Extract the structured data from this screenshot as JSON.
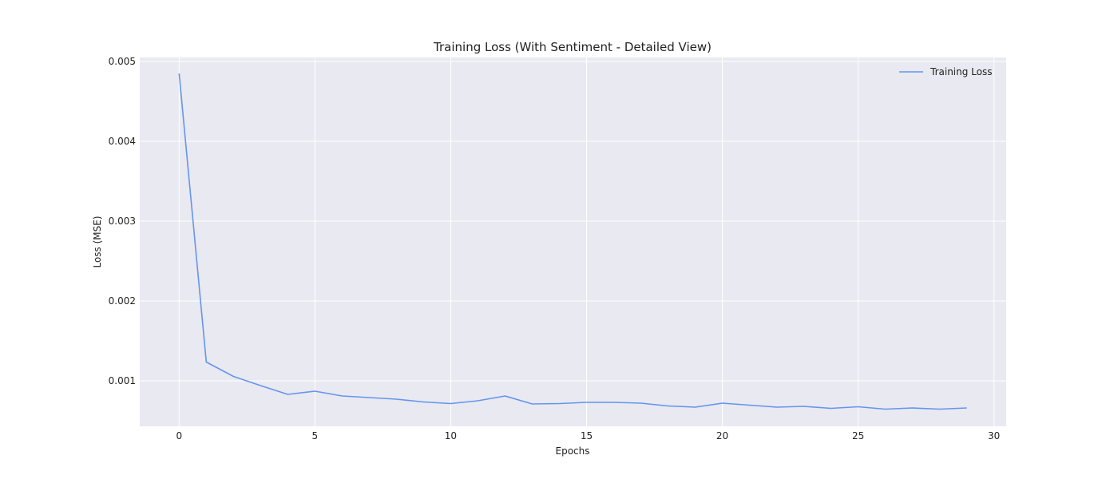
{
  "chart_data": {
    "type": "line",
    "title": "Training Loss (With Sentiment - Detailed View)",
    "xlabel": "Epochs",
    "ylabel": "Loss (MSE)",
    "xlim": [
      -1.45,
      30.45
    ],
    "ylim": [
      0.00043,
      0.00505
    ],
    "xticks": [
      0,
      5,
      10,
      15,
      20,
      25,
      30
    ],
    "yticks": [
      0.001,
      0.002,
      0.003,
      0.004,
      0.005
    ],
    "xtick_labels": [
      "0",
      "5",
      "10",
      "15",
      "20",
      "25",
      "30"
    ],
    "ytick_labels": [
      "0.001",
      "0.002",
      "0.003",
      "0.004",
      "0.005"
    ],
    "grid": true,
    "legend_position": "top-right",
    "background_color": "#e9e9f1",
    "series": [
      {
        "name": "Training Loss",
        "color": "#6495ed",
        "x": [
          0,
          1,
          2,
          3,
          4,
          5,
          6,
          7,
          8,
          9,
          10,
          11,
          12,
          13,
          14,
          15,
          16,
          17,
          18,
          19,
          20,
          21,
          22,
          23,
          24,
          25,
          26,
          27,
          28,
          29
        ],
        "values": [
          0.00485,
          0.001235,
          0.001055,
          0.00094,
          0.00083,
          0.00087,
          0.00081,
          0.00079,
          0.00077,
          0.000735,
          0.000715,
          0.00075,
          0.00081,
          0.00071,
          0.000715,
          0.00073,
          0.00073,
          0.00072,
          0.000685,
          0.00067,
          0.00072,
          0.000695,
          0.00067,
          0.00068,
          0.000655,
          0.000675,
          0.000645,
          0.00066,
          0.000645,
          0.00066
        ]
      }
    ]
  }
}
